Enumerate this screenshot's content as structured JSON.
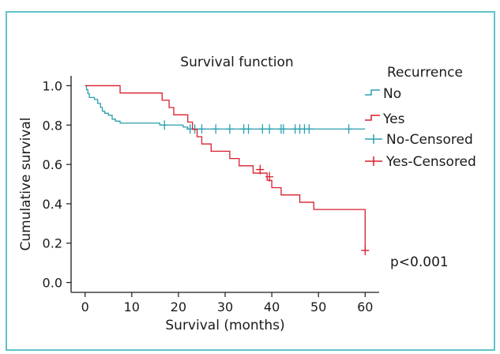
{
  "chart_data": {
    "type": "line",
    "title": "Survival function",
    "xlabel": "Survival (months)",
    "ylabel": "Cumulative survival",
    "xlim": [
      -3,
      63
    ],
    "ylim": [
      -0.05,
      1.05
    ],
    "xticks": [
      0,
      10,
      20,
      30,
      40,
      50,
      60
    ],
    "yticks": [
      0.0,
      0.2,
      0.4,
      0.6,
      0.8,
      1.0
    ],
    "xtick_labels": [
      "0",
      "10",
      "20",
      "30",
      "40",
      "50",
      "60"
    ],
    "ytick_labels": [
      "0.0",
      "0.2",
      "0.4",
      "0.6",
      "0.8",
      "1.0"
    ],
    "grid": false,
    "legend": {
      "title": "Recurrence",
      "placement": "right",
      "entries": [
        "No",
        "Yes",
        "No-Censored",
        "Yes-Censored"
      ]
    },
    "annotation": "p<0.001",
    "colors": {
      "No": "#2a9fb0",
      "Yes": "#d81e2c"
    },
    "series": [
      {
        "name": "No",
        "color": "#2a9fb0",
        "steps": [
          [
            0,
            1.0
          ],
          [
            0.3,
            0.98
          ],
          [
            0.6,
            0.96
          ],
          [
            0.9,
            0.94
          ],
          [
            2,
            0.93
          ],
          [
            2.7,
            0.91
          ],
          [
            3.3,
            0.89
          ],
          [
            3.7,
            0.87
          ],
          [
            4.2,
            0.86
          ],
          [
            5,
            0.85
          ],
          [
            5.8,
            0.83
          ],
          [
            6.5,
            0.82
          ],
          [
            7.5,
            0.81
          ],
          [
            12,
            0.81
          ],
          [
            16,
            0.8
          ],
          [
            18.5,
            0.8
          ],
          [
            21,
            0.79
          ],
          [
            22,
            0.78
          ],
          [
            60,
            0.78
          ]
        ],
        "censored": [
          [
            17,
            0.8
          ],
          [
            22.5,
            0.78
          ],
          [
            23.5,
            0.78
          ],
          [
            25,
            0.78
          ],
          [
            28,
            0.78
          ],
          [
            31,
            0.78
          ],
          [
            34,
            0.78
          ],
          [
            35,
            0.78
          ],
          [
            38,
            0.78
          ],
          [
            39.5,
            0.78
          ],
          [
            42,
            0.78
          ],
          [
            42.5,
            0.78
          ],
          [
            45,
            0.78
          ],
          [
            46,
            0.78
          ],
          [
            47,
            0.78
          ],
          [
            48,
            0.78
          ],
          [
            56.5,
            0.78
          ]
        ]
      },
      {
        "name": "Yes",
        "color": "#d81e2c",
        "steps": [
          [
            0,
            1.0
          ],
          [
            7.5,
            0.963
          ],
          [
            16.5,
            0.926
          ],
          [
            18,
            0.889
          ],
          [
            19,
            0.852
          ],
          [
            22,
            0.815
          ],
          [
            23,
            0.778
          ],
          [
            24,
            0.741
          ],
          [
            25,
            0.704
          ],
          [
            27,
            0.667
          ],
          [
            31,
            0.63
          ],
          [
            33,
            0.593
          ],
          [
            36,
            0.556
          ],
          [
            39,
            0.519
          ],
          [
            40,
            0.482
          ],
          [
            42,
            0.445
          ],
          [
            46,
            0.408
          ],
          [
            49,
            0.371
          ],
          [
            60,
            0.16
          ]
        ],
        "censored": [
          [
            37.5,
            0.574
          ],
          [
            39.5,
            0.537
          ],
          [
            60,
            0.163
          ]
        ]
      }
    ]
  }
}
